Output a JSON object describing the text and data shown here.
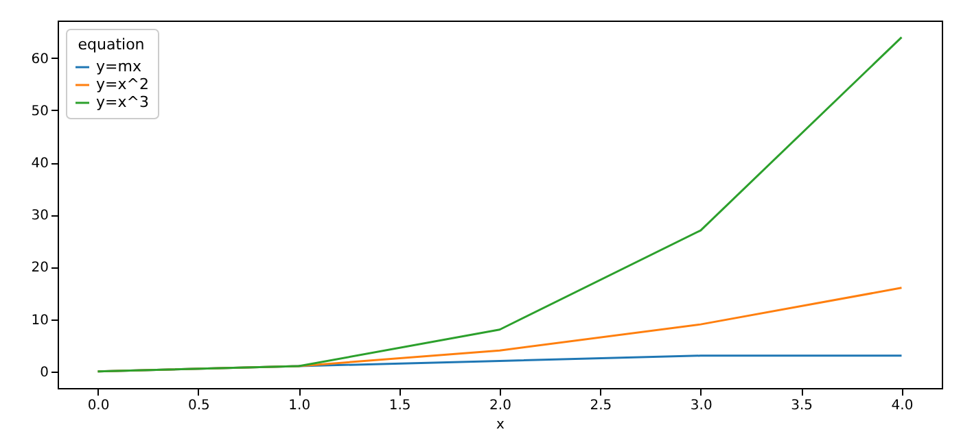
{
  "chart_data": {
    "type": "line",
    "xlabel": "x",
    "legend_title": "equation",
    "legend": "top left",
    "grid": false,
    "marker": "none",
    "line_style": "solid",
    "x": [
      0,
      1,
      2,
      3,
      4
    ],
    "series": [
      {
        "name": "y=mx",
        "color": "#1f77b4",
        "values": [
          0,
          1,
          2,
          3,
          3
        ]
      },
      {
        "name": "y=x^2",
        "color": "#ff7f0e",
        "values": [
          0,
          1,
          4,
          9,
          16
        ]
      },
      {
        "name": "y=x^3",
        "color": "#2ca02c",
        "values": [
          0,
          1,
          8,
          27,
          64
        ]
      }
    ],
    "xlim": [
      -0.2,
      4.2
    ],
    "ylim": [
      -3.2,
      67.2
    ],
    "xticks": [
      {
        "value": 0,
        "label": "0.0"
      },
      {
        "value": 0.5,
        "label": "0.5"
      },
      {
        "value": 1,
        "label": "1.0"
      },
      {
        "value": 1.5,
        "label": "1.5"
      },
      {
        "value": 2,
        "label": "2.0"
      },
      {
        "value": 2.5,
        "label": "2.5"
      },
      {
        "value": 3,
        "label": "3.0"
      },
      {
        "value": 3.5,
        "label": "3.5"
      },
      {
        "value": 4,
        "label": "4.0"
      }
    ],
    "yticks": [
      0,
      10,
      20,
      30,
      40,
      50,
      60
    ]
  }
}
